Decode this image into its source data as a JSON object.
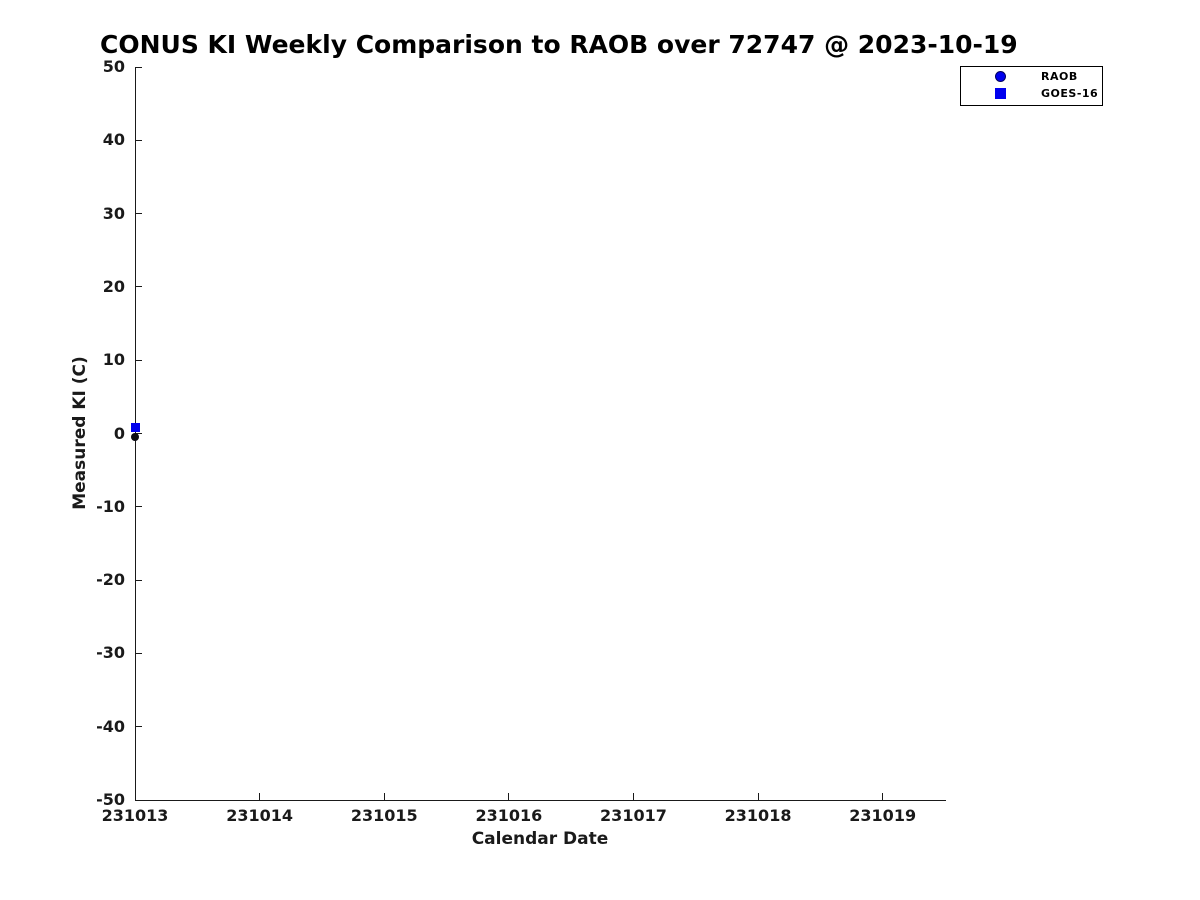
{
  "chart_data": {
    "type": "scatter",
    "title": "CONUS KI Weekly Comparison to RAOB over 72747 @ 2023-10-19",
    "xlabel": "Calendar Date",
    "ylabel": "Measured KI (C)",
    "xlim": [
      231013,
      231019.5
    ],
    "ylim": [
      -50,
      50
    ],
    "xticks": [
      231013,
      231014,
      231015,
      231016,
      231017,
      231018,
      231019
    ],
    "yticks": [
      -50,
      -40,
      -30,
      -20,
      -10,
      0,
      10,
      20,
      30,
      40,
      50
    ],
    "grid": false,
    "background": "#ffffff",
    "axis_color": "#1a1a1a",
    "legend": {
      "position": "top-right",
      "border_color": "#000000"
    },
    "series": [
      {
        "name": "RAOB",
        "marker": "circle",
        "color": "#0000ee",
        "plot_marker_color": "#0a0a14",
        "points": [
          {
            "x": 231013,
            "y": -0.5
          }
        ]
      },
      {
        "name": "GOES-16",
        "marker": "square",
        "color": "#0000ee",
        "plot_marker_color": "#0000ee",
        "points": [
          {
            "x": 231013,
            "y": 0.8
          }
        ]
      }
    ]
  }
}
